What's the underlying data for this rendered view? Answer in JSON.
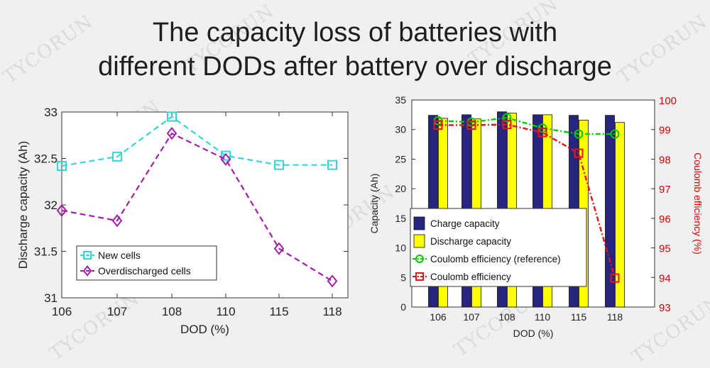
{
  "title": {
    "line1": "The capacity loss of batteries with",
    "line2": "different DODs after battery over discharge"
  },
  "watermark": "TYCORUN",
  "colors": {
    "new_cells": "#33d6dd",
    "overdischarged": "#a020a8",
    "charge_bar": "#262680",
    "discharge_bar": "#ffff00",
    "ce_reference": "#00cc00",
    "ce": "#ee1111",
    "right_axis": "#dd0000"
  },
  "chart_data": [
    {
      "type": "line",
      "title": "",
      "xlabel": "DOD (%)",
      "ylabel": "Discharge capacity (Ah)",
      "categories": [
        "106",
        "107",
        "108",
        "110",
        "115",
        "118"
      ],
      "ylim": [
        31,
        33
      ],
      "yticks": [
        "31",
        "31.5",
        "32",
        "32.5",
        "33"
      ],
      "legend_position": "lower-left",
      "series": [
        {
          "name": "New cells",
          "marker": "square",
          "values": [
            32.42,
            32.52,
            32.95,
            32.53,
            32.43,
            32.43
          ]
        },
        {
          "name": "Overdischarged cells",
          "marker": "diamond",
          "values": [
            31.94,
            31.83,
            32.77,
            32.49,
            31.53,
            31.18
          ]
        }
      ]
    },
    {
      "type": "bar",
      "title": "",
      "xlabel": "DOD (%)",
      "ylabel": "Capacity (Ah)",
      "y2label": "Coulomb efficiency (%)",
      "categories": [
        "106",
        "107",
        "108",
        "110",
        "115",
        "118"
      ],
      "ylim": [
        0,
        35
      ],
      "y2lim": [
        93,
        100
      ],
      "yticks": [
        "0",
        "5",
        "10",
        "15",
        "20",
        "25",
        "30",
        "35"
      ],
      "y2ticks": [
        "93",
        "94",
        "95",
        "96",
        "97",
        "98",
        "99",
        "100"
      ],
      "legend_position": "lower-left",
      "series": [
        {
          "name": "Charge capacity",
          "kind": "bar",
          "axis": "left",
          "values": [
            32.4,
            32.5,
            33.0,
            32.5,
            32.4,
            32.4
          ]
        },
        {
          "name": "Discharge capacity",
          "kind": "bar",
          "axis": "left",
          "values": [
            31.9,
            31.8,
            32.8,
            32.5,
            31.6,
            31.2
          ]
        },
        {
          "name": "Coulomb efficiency (reference)",
          "kind": "line",
          "axis": "right",
          "marker": "circle",
          "values": [
            99.3,
            99.25,
            99.4,
            99.05,
            98.85,
            98.85
          ]
        },
        {
          "name": "Coulomb efficiency",
          "kind": "line",
          "axis": "right",
          "marker": "square",
          "values": [
            99.15,
            99.15,
            99.17,
            98.9,
            98.2,
            93.98
          ]
        }
      ]
    }
  ]
}
